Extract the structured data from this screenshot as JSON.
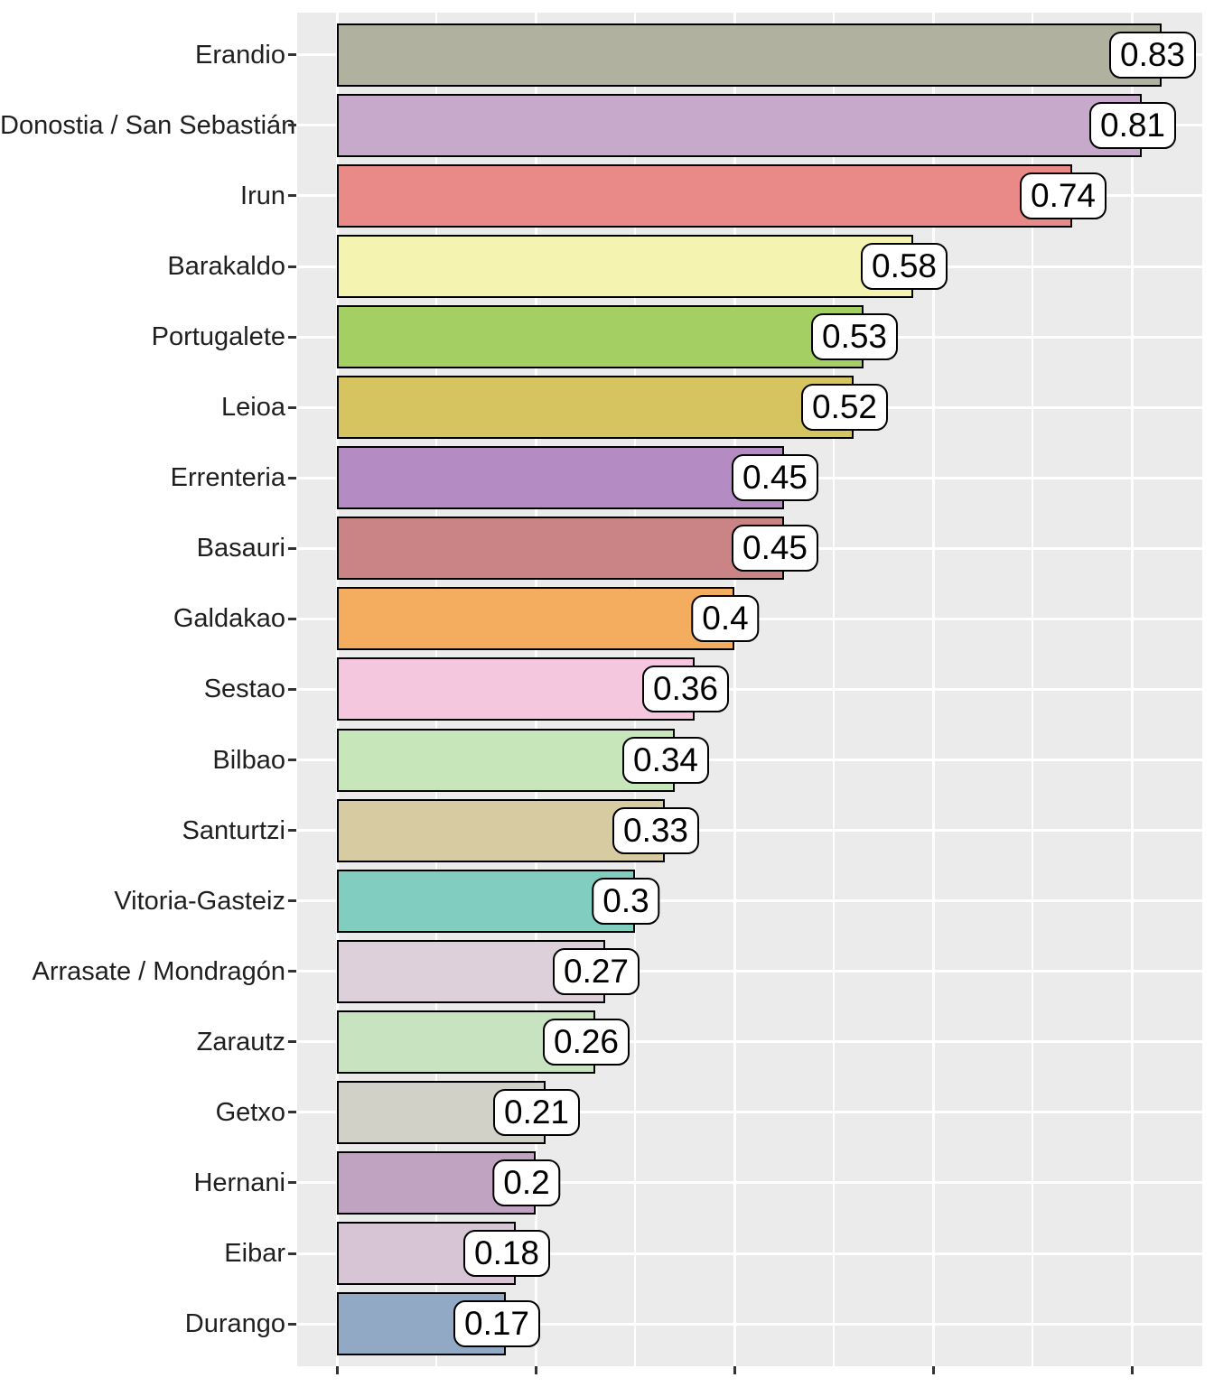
{
  "chart_data": {
    "type": "bar",
    "orientation": "horizontal",
    "title": "",
    "xlabel": "",
    "ylabel": "",
    "categories": [
      "Erandio",
      "Donostia / San Sebastián",
      "Irun",
      "Barakaldo",
      "Portugalete",
      "Leioa",
      "Errenteria",
      "Basauri",
      "Galdakao",
      "Sestao",
      "Bilbao",
      "Santurtzi",
      "Vitoria-Gasteiz",
      "Arrasate / Mondragón",
      "Zarautz",
      "Getxo",
      "Hernani",
      "Eibar",
      "Durango"
    ],
    "values": [
      0.83,
      0.81,
      0.74,
      0.58,
      0.53,
      0.52,
      0.45,
      0.45,
      0.4,
      0.36,
      0.34,
      0.33,
      0.3,
      0.27,
      0.26,
      0.21,
      0.2,
      0.18,
      0.17
    ],
    "value_labels": [
      "0.83",
      "0.81",
      "0.74",
      "0.58",
      "0.53",
      "0.52",
      "0.45",
      "0.45",
      "0.4",
      "0.36",
      "0.34",
      "0.33",
      "0.3",
      "0.27",
      "0.26",
      "0.21",
      "0.2",
      "0.18",
      "0.17"
    ],
    "bar_colors": [
      "#B1B1A0",
      "#C6A9CB",
      "#EA8A88",
      "#F4F4B0",
      "#A4D063",
      "#D5C45F",
      "#B48BC2",
      "#CB8486",
      "#F4AC5E",
      "#F4C7DF",
      "#C7E7BA",
      "#D6CBA1",
      "#81CEC0",
      "#DDD0DA",
      "#C8E3C0",
      "#D2D1C8",
      "#C0A3C0",
      "#D7C4D4",
      "#92A9C6"
    ],
    "xlim": [
      -0.04,
      0.871
    ],
    "x_major_ticks": [
      0,
      0.2,
      0.4,
      0.6,
      0.8
    ],
    "x_minor_ticks": [
      0.1,
      0.3,
      0.5,
      0.7
    ],
    "x_tick_labels_visible": false,
    "grid": true,
    "legend": false
  },
  "style": {
    "panel_bg": "#EBEBEB",
    "grid_color": "#FFFFFF",
    "bar_stroke": "#000000",
    "label_bg": "#FFFFFF",
    "label_border": "#000000",
    "axis_text_color": "#1F1F1F",
    "tick_color": "#333333",
    "background": "#FFFFFF"
  }
}
